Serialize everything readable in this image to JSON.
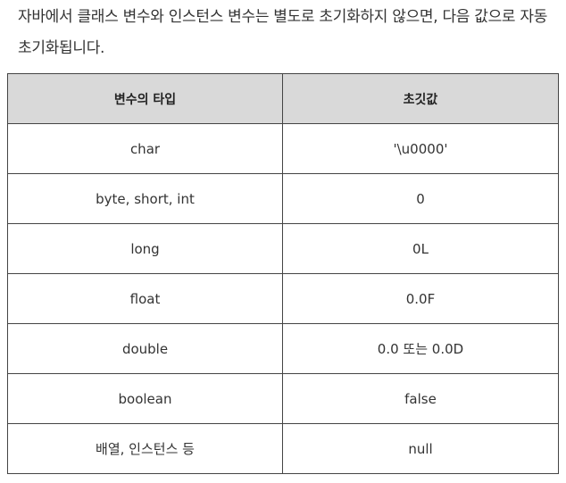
{
  "intro": {
    "text": "자바에서 클래스 변수와 인스턴스 변수는 별도로 초기화하지 않으면, 다음 값으로 자동 초기화됩니다."
  },
  "table": {
    "headers": [
      "변수의 타입",
      "초깃값"
    ],
    "rows": [
      [
        "char",
        "'\\u0000'"
      ],
      [
        "byte, short, int",
        "0"
      ],
      [
        "long",
        "0L"
      ],
      [
        "float",
        "0.0F"
      ],
      [
        "double",
        "0.0 또는 0.0D"
      ],
      [
        "boolean",
        "false"
      ],
      [
        "배열, 인스턴스 등",
        "null"
      ]
    ]
  },
  "colors": {
    "header_bg": "#d9d9d9",
    "border": "#444444",
    "text": "#333333"
  }
}
